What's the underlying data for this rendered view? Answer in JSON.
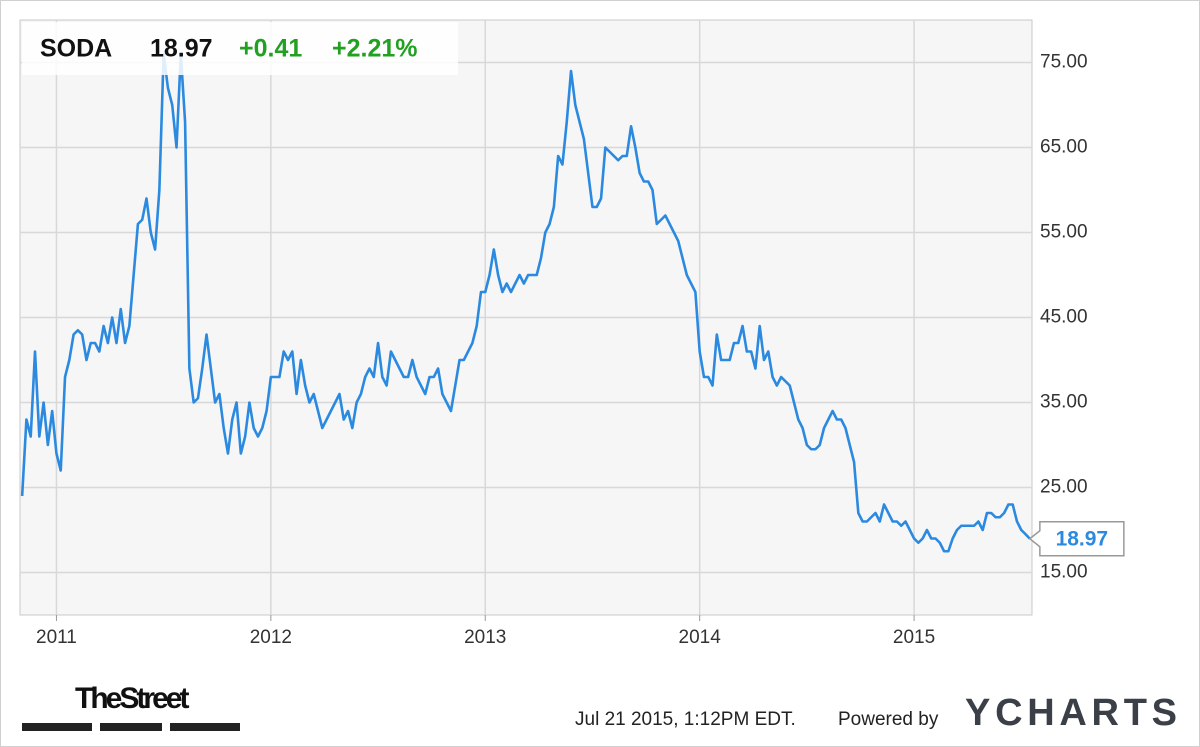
{
  "chart_data": {
    "type": "line",
    "header": {
      "ticker": "SODA",
      "price": "18.97",
      "change": "+0.41",
      "change_pct": "+2.21%"
    },
    "footer": {
      "source": "TheStreet",
      "timestamp": "Jul 21 2015, 1:12PM EDT.",
      "powered_by": "Powered by",
      "brand": "YCHARTS"
    },
    "xlim": [
      2010.83,
      2015.55
    ],
    "xticks": [
      2011,
      2012,
      2013,
      2014,
      2015
    ],
    "ylim": [
      10,
      80
    ],
    "yticks": [
      {
        "value": 15,
        "label": "15.00"
      },
      {
        "value": 25,
        "label": "25.00"
      },
      {
        "value": 35,
        "label": "35.00"
      },
      {
        "value": 45,
        "label": "45.00"
      },
      {
        "value": 55,
        "label": "55.00"
      },
      {
        "value": 65,
        "label": "65.00"
      },
      {
        "value": 75,
        "label": "75.00"
      }
    ],
    "grid": true,
    "x": [
      2010.84,
      2010.86,
      2010.88,
      2010.9,
      2010.92,
      2010.94,
      2010.96,
      2010.98,
      2011.0,
      2011.02,
      2011.04,
      2011.06,
      2011.08,
      2011.1,
      2011.12,
      2011.14,
      2011.16,
      2011.18,
      2011.2,
      2011.22,
      2011.24,
      2011.26,
      2011.28,
      2011.3,
      2011.32,
      2011.34,
      2011.36,
      2011.38,
      2011.4,
      2011.42,
      2011.44,
      2011.46,
      2011.48,
      2011.5,
      2011.52,
      2011.54,
      2011.56,
      2011.58,
      2011.6,
      2011.62,
      2011.64,
      2011.66,
      2011.68,
      2011.7,
      2011.72,
      2011.74,
      2011.76,
      2011.78,
      2011.8,
      2011.82,
      2011.84,
      2011.86,
      2011.88,
      2011.9,
      2011.92,
      2011.94,
      2011.96,
      2011.98,
      2012.0,
      2012.02,
      2012.04,
      2012.06,
      2012.08,
      2012.1,
      2012.12,
      2012.14,
      2012.16,
      2012.18,
      2012.2,
      2012.22,
      2012.24,
      2012.26,
      2012.28,
      2012.3,
      2012.32,
      2012.34,
      2012.36,
      2012.38,
      2012.4,
      2012.42,
      2012.44,
      2012.46,
      2012.48,
      2012.5,
      2012.52,
      2012.54,
      2012.56,
      2012.58,
      2012.6,
      2012.62,
      2012.64,
      2012.66,
      2012.68,
      2012.7,
      2012.72,
      2012.74,
      2012.76,
      2012.78,
      2012.8,
      2012.82,
      2012.84,
      2012.86,
      2012.88,
      2012.9,
      2012.92,
      2012.94,
      2012.96,
      2012.98,
      2013.0,
      2013.02,
      2013.04,
      2013.06,
      2013.08,
      2013.1,
      2013.12,
      2013.14,
      2013.16,
      2013.18,
      2013.2,
      2013.22,
      2013.24,
      2013.26,
      2013.28,
      2013.3,
      2013.32,
      2013.34,
      2013.36,
      2013.38,
      2013.4,
      2013.42,
      2013.44,
      2013.46,
      2013.48,
      2013.5,
      2013.52,
      2013.54,
      2013.56,
      2013.58,
      2013.6,
      2013.62,
      2013.64,
      2013.66,
      2013.68,
      2013.7,
      2013.72,
      2013.74,
      2013.76,
      2013.78,
      2013.8,
      2013.82,
      2013.84,
      2013.86,
      2013.88,
      2013.9,
      2013.92,
      2013.94,
      2013.96,
      2013.98,
      2014.0,
      2014.02,
      2014.04,
      2014.06,
      2014.08,
      2014.1,
      2014.12,
      2014.14,
      2014.16,
      2014.18,
      2014.2,
      2014.22,
      2014.24,
      2014.26,
      2014.28,
      2014.3,
      2014.32,
      2014.34,
      2014.36,
      2014.38,
      2014.4,
      2014.42,
      2014.44,
      2014.46,
      2014.48,
      2014.5,
      2014.52,
      2014.54,
      2014.56,
      2014.58,
      2014.6,
      2014.62,
      2014.64,
      2014.66,
      2014.68,
      2014.7,
      2014.72,
      2014.74,
      2014.76,
      2014.78,
      2014.8,
      2014.82,
      2014.84,
      2014.86,
      2014.88,
      2014.9,
      2014.92,
      2014.94,
      2014.96,
      2014.98,
      2015.0,
      2015.02,
      2015.04,
      2015.06,
      2015.08,
      2015.1,
      2015.12,
      2015.14,
      2015.16,
      2015.18,
      2015.2,
      2015.22,
      2015.24,
      2015.26,
      2015.28,
      2015.3,
      2015.32,
      2015.34,
      2015.36,
      2015.38,
      2015.4,
      2015.42,
      2015.44,
      2015.46,
      2015.48,
      2015.5,
      2015.52,
      2015.54
    ],
    "series": [
      {
        "name": "SODA",
        "color": "#2b8ae0",
        "values": [
          24,
          33,
          31,
          41,
          31,
          35,
          30,
          34,
          29,
          27,
          38,
          40,
          43,
          43.5,
          43,
          40,
          42,
          42,
          41,
          44,
          42,
          45,
          42,
          46,
          42,
          44,
          50,
          56,
          56.5,
          59,
          55,
          53,
          60,
          76,
          72,
          70,
          65,
          76,
          68,
          39,
          35,
          35.5,
          39,
          43,
          39,
          35,
          36,
          32,
          29,
          33,
          35,
          29,
          31,
          35,
          32,
          31,
          32,
          34,
          38,
          38,
          38,
          41,
          40,
          41,
          36,
          40,
          37,
          35,
          36,
          34,
          32,
          33,
          34,
          35,
          36,
          33,
          34,
          32,
          35,
          36,
          38,
          39,
          38,
          42,
          38,
          37,
          41,
          40,
          39,
          38,
          38,
          40,
          38,
          37,
          36,
          38,
          38,
          39,
          36,
          35,
          34,
          37,
          40,
          40,
          41,
          42,
          44,
          48,
          48,
          50,
          53,
          50,
          48,
          49,
          48,
          49,
          50,
          49,
          50,
          50,
          50,
          52,
          55,
          56,
          58,
          64,
          63,
          68,
          74,
          70,
          68,
          66,
          62,
          58,
          58,
          59,
          65,
          64.5,
          64,
          63.5,
          64,
          64,
          67.5,
          65,
          62,
          61,
          61,
          60,
          56,
          56.5,
          57,
          56,
          55,
          54,
          52,
          50,
          49,
          48,
          41,
          38,
          38,
          37,
          43,
          40,
          40,
          40,
          42,
          42,
          44,
          41,
          41,
          39,
          44,
          40,
          41,
          38,
          37,
          38,
          37.5,
          37,
          35,
          33,
          32,
          30,
          29.5,
          29.5,
          30,
          32,
          33,
          34,
          33,
          33,
          32,
          30,
          28,
          22,
          21,
          21,
          21.5,
          22,
          21,
          23,
          22,
          21,
          21,
          20.5,
          21,
          20,
          19,
          18.5,
          19,
          20,
          19,
          19,
          18.5,
          17.5,
          17.5,
          19,
          20,
          20.5,
          20.5,
          20.5,
          20.5,
          21,
          20,
          22,
          22,
          21.5,
          21.5,
          22,
          23,
          23,
          21,
          20,
          19.5,
          18.97
        ]
      }
    ]
  }
}
